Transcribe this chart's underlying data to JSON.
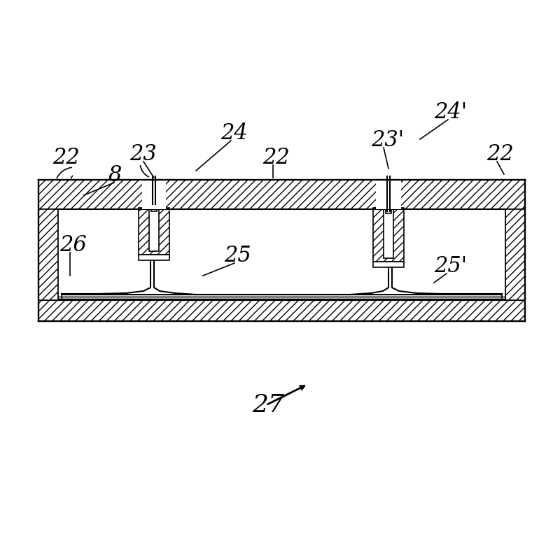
{
  "bg_color": "#ffffff",
  "line_color": "#000000",
  "hatch_color": "#000000",
  "fig_width": 8.0,
  "fig_height": 7.89,
  "labels": {
    "22_left": "22",
    "8": "8",
    "23_left": "23",
    "24_center": "24",
    "22_center": "22",
    "23_right": "23'",
    "24_right": "24'",
    "22_right": "22",
    "26": "26",
    "25": "25",
    "25_right": "25'",
    "27": "27"
  }
}
